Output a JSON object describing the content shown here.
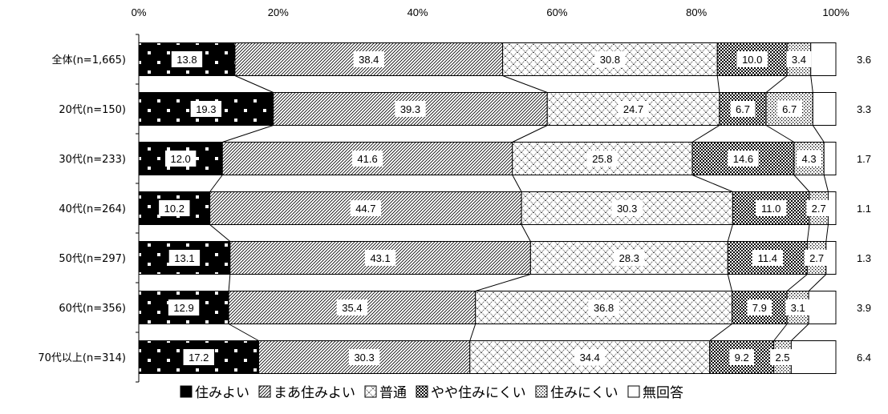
{
  "chart_data": {
    "type": "bar",
    "orientation": "horizontal",
    "stacked": true,
    "percent_scale": true,
    "xlim": [
      0,
      100
    ],
    "x_ticks": [
      "0%",
      "20%",
      "40%",
      "60%",
      "80%",
      "100%"
    ],
    "grid": false,
    "legend_position": "bottom",
    "series_lines": true,
    "categories": [
      "全体(n=1,665)",
      "20代(n=150)",
      "30代(n=233)",
      "40代(n=264)",
      "50代(n=297)",
      "60代(n=356)",
      "70代以上(n=314)"
    ],
    "series": [
      {
        "name": "住みよい",
        "pattern": "dots",
        "values": [
          13.8,
          19.3,
          12.0,
          10.2,
          13.1,
          12.9,
          17.2
        ]
      },
      {
        "name": "まあ住みよい",
        "pattern": "diagonal",
        "values": [
          38.4,
          39.3,
          41.6,
          44.7,
          43.1,
          35.4,
          30.3
        ]
      },
      {
        "name": "普通",
        "pattern": "crosshatch",
        "values": [
          30.8,
          24.7,
          25.8,
          30.3,
          28.3,
          36.8,
          34.4
        ]
      },
      {
        "name": "やや住みにくい",
        "pattern": "checker",
        "values": [
          10.0,
          6.7,
          14.6,
          11.0,
          11.4,
          7.9,
          9.2
        ]
      },
      {
        "name": "住みにくい",
        "pattern": "light-dots",
        "values": [
          3.4,
          6.7,
          4.3,
          2.7,
          2.7,
          3.1,
          2.5
        ]
      },
      {
        "name": "無回答",
        "pattern": "blank",
        "values": [
          3.6,
          3.3,
          1.7,
          1.1,
          1.3,
          3.9,
          6.4
        ]
      }
    ],
    "colors": {
      "ink": "#000000",
      "background": "#ffffff"
    }
  }
}
